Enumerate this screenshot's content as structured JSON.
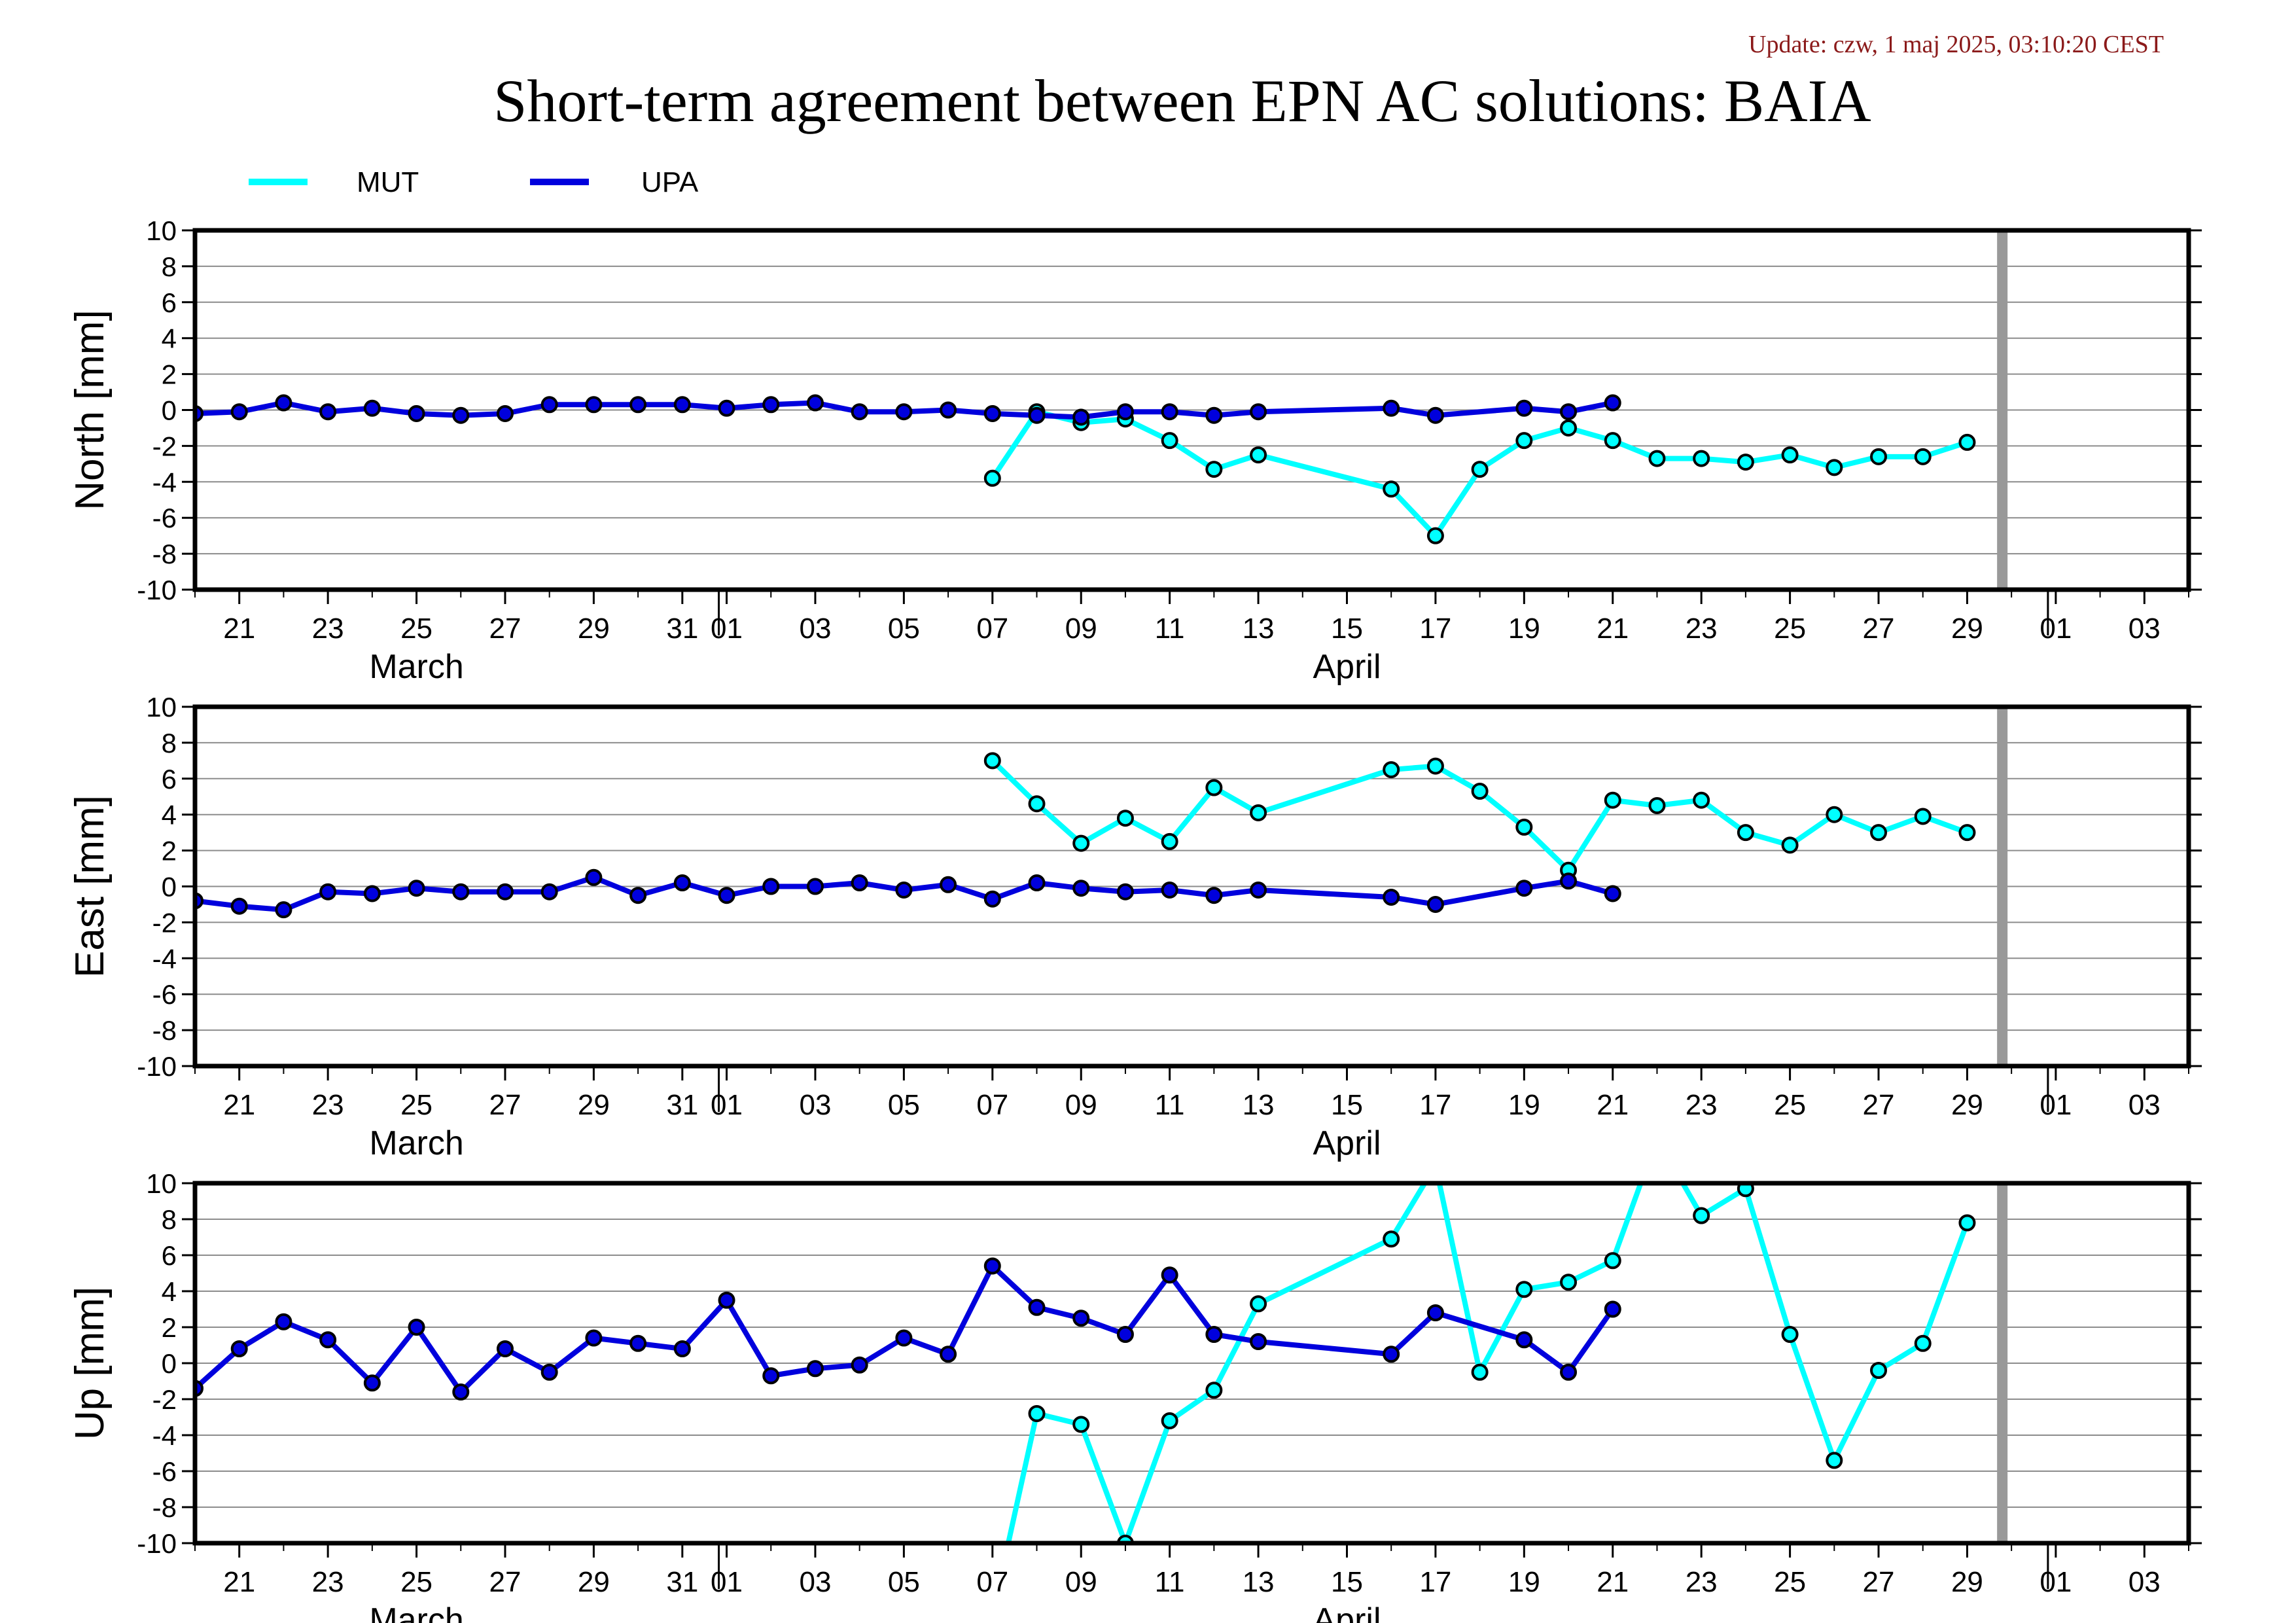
{
  "update_text": "Update: czw, 1 maj 2025, 03:10:20 CEST",
  "colors": {
    "MUT": "#00ffff",
    "UPA": "#0000dd",
    "today_line": "#999999",
    "update_text": "#8b1a1a"
  },
  "chart_data": {
    "type": "line",
    "title": "Short-term agreement between EPN AC solutions: BAIA",
    "legend": {
      "placement": "top-left",
      "entries": [
        "MUT",
        "UPA"
      ]
    },
    "x_axis": {
      "unit": "day",
      "range": [
        "2025-03-20",
        "2025-05-04"
      ],
      "tick_labels": [
        "21",
        "23",
        "25",
        "27",
        "29",
        "31",
        "01",
        "03",
        "05",
        "07",
        "09",
        "11",
        "13",
        "15",
        "17",
        "19",
        "21",
        "23",
        "25",
        "27",
        "29",
        "01",
        "03"
      ],
      "tick_dates": [
        "2025-03-21",
        "2025-03-23",
        "2025-03-25",
        "2025-03-27",
        "2025-03-29",
        "2025-03-31",
        "2025-04-01",
        "2025-04-03",
        "2025-04-05",
        "2025-04-07",
        "2025-04-09",
        "2025-04-11",
        "2025-04-13",
        "2025-04-15",
        "2025-04-17",
        "2025-04-19",
        "2025-04-21",
        "2025-04-23",
        "2025-04-25",
        "2025-04-27",
        "2025-04-29",
        "2025-05-01",
        "2025-05-03"
      ],
      "months": [
        {
          "label": "March",
          "date": "2025-03-25"
        },
        {
          "label": "April",
          "date": "2025-04-15"
        }
      ],
      "month_boundaries": [
        "2025-04-01",
        "2025-05-01"
      ]
    },
    "marker_line_date": "2025-04-30",
    "ylim": [
      -10,
      10
    ],
    "y_ticks": [
      10,
      8,
      6,
      4,
      2,
      0,
      -2,
      -4,
      -6,
      -8,
      -10
    ],
    "grid": true,
    "panels": [
      {
        "ylabel": "North [mm]",
        "series": [
          {
            "name": "MUT",
            "x": [
              "2025-04-07",
              "2025-04-08",
              "2025-04-09",
              "2025-04-10",
              "2025-04-11",
              "2025-04-12",
              "2025-04-13",
              "2025-04-16",
              "2025-04-17",
              "2025-04-18",
              "2025-04-19",
              "2025-04-20",
              "2025-04-21",
              "2025-04-22",
              "2025-04-23",
              "2025-04-24",
              "2025-04-25",
              "2025-04-26",
              "2025-04-27",
              "2025-04-28",
              "2025-04-29"
            ],
            "y": [
              -3.8,
              -0.1,
              -0.7,
              -0.5,
              -1.7,
              -3.3,
              -2.5,
              -4.4,
              -7.0,
              -3.3,
              -1.7,
              -1.0,
              -1.7,
              -2.7,
              -2.7,
              -2.9,
              -2.5,
              -3.2,
              -2.6,
              -2.6,
              -1.8
            ]
          },
          {
            "name": "UPA",
            "x": [
              "2025-03-20",
              "2025-03-21",
              "2025-03-22",
              "2025-03-23",
              "2025-03-24",
              "2025-03-25",
              "2025-03-26",
              "2025-03-27",
              "2025-03-28",
              "2025-03-29",
              "2025-03-30",
              "2025-03-31",
              "2025-04-01",
              "2025-04-02",
              "2025-04-03",
              "2025-04-04",
              "2025-04-05",
              "2025-04-06",
              "2025-04-07",
              "2025-04-08",
              "2025-04-09",
              "2025-04-10",
              "2025-04-11",
              "2025-04-12",
              "2025-04-13",
              "2025-04-16",
              "2025-04-17",
              "2025-04-19",
              "2025-04-20",
              "2025-04-21"
            ],
            "y": [
              -0.2,
              -0.1,
              0.4,
              -0.1,
              0.1,
              -0.2,
              -0.3,
              -0.2,
              0.3,
              0.3,
              0.3,
              0.3,
              0.1,
              0.3,
              0.4,
              -0.1,
              -0.1,
              0.0,
              -0.2,
              -0.3,
              -0.4,
              -0.1,
              -0.1,
              -0.3,
              -0.1,
              0.1,
              -0.3,
              0.1,
              -0.1,
              0.4
            ]
          }
        ]
      },
      {
        "ylabel": "East [mm]",
        "series": [
          {
            "name": "MUT",
            "x": [
              "2025-04-07",
              "2025-04-08",
              "2025-04-09",
              "2025-04-10",
              "2025-04-11",
              "2025-04-12",
              "2025-04-13",
              "2025-04-16",
              "2025-04-17",
              "2025-04-18",
              "2025-04-19",
              "2025-04-20",
              "2025-04-21",
              "2025-04-22",
              "2025-04-23",
              "2025-04-24",
              "2025-04-25",
              "2025-04-26",
              "2025-04-27",
              "2025-04-28",
              "2025-04-29"
            ],
            "y": [
              7.0,
              4.6,
              2.4,
              3.8,
              2.5,
              5.5,
              4.1,
              6.5,
              6.7,
              5.3,
              3.3,
              0.9,
              4.8,
              4.5,
              4.8,
              3.0,
              2.3,
              4.0,
              3.0,
              3.9,
              3.0
            ]
          },
          {
            "name": "UPA",
            "x": [
              "2025-03-20",
              "2025-03-21",
              "2025-03-22",
              "2025-03-23",
              "2025-03-24",
              "2025-03-25",
              "2025-03-26",
              "2025-03-27",
              "2025-03-28",
              "2025-03-29",
              "2025-03-30",
              "2025-03-31",
              "2025-04-01",
              "2025-04-02",
              "2025-04-03",
              "2025-04-04",
              "2025-04-05",
              "2025-04-06",
              "2025-04-07",
              "2025-04-08",
              "2025-04-09",
              "2025-04-10",
              "2025-04-11",
              "2025-04-12",
              "2025-04-13",
              "2025-04-16",
              "2025-04-17",
              "2025-04-19",
              "2025-04-20",
              "2025-04-21"
            ],
            "y": [
              -0.8,
              -1.1,
              -1.3,
              -0.3,
              -0.4,
              -0.1,
              -0.3,
              -0.3,
              -0.3,
              0.5,
              -0.5,
              0.2,
              -0.5,
              0.0,
              0.0,
              0.2,
              -0.2,
              0.1,
              -0.7,
              0.2,
              -0.1,
              -0.3,
              -0.2,
              -0.5,
              -0.2,
              -0.6,
              -1.0,
              -0.1,
              0.3,
              -0.4
            ]
          }
        ]
      },
      {
        "ylabel": "Up [mm]",
        "series": [
          {
            "name": "MUT",
            "x": [
              "2025-04-07",
              "2025-04-08",
              "2025-04-09",
              "2025-04-10",
              "2025-04-11",
              "2025-04-12",
              "2025-04-13",
              "2025-04-16",
              "2025-04-17",
              "2025-04-18",
              "2025-04-19",
              "2025-04-20",
              "2025-04-21",
              "2025-04-22",
              "2025-04-23",
              "2025-04-24",
              "2025-04-25",
              "2025-04-26",
              "2025-04-27",
              "2025-04-28",
              "2025-04-29"
            ],
            "y": [
              -14.0,
              -2.8,
              -3.4,
              -10.0,
              -3.2,
              -1.5,
              3.3,
              6.9,
              11.0,
              -0.5,
              4.1,
              4.5,
              5.7,
              12.5,
              8.2,
              9.7,
              1.6,
              -5.4,
              -0.4,
              1.1,
              7.8
            ]
          },
          {
            "name": "UPA",
            "x": [
              "2025-03-20",
              "2025-03-21",
              "2025-03-22",
              "2025-03-23",
              "2025-03-24",
              "2025-03-25",
              "2025-03-26",
              "2025-03-27",
              "2025-03-28",
              "2025-03-29",
              "2025-03-30",
              "2025-03-31",
              "2025-04-01",
              "2025-04-02",
              "2025-04-03",
              "2025-04-04",
              "2025-04-05",
              "2025-04-06",
              "2025-04-07",
              "2025-04-08",
              "2025-04-09",
              "2025-04-10",
              "2025-04-11",
              "2025-04-12",
              "2025-04-13",
              "2025-04-16",
              "2025-04-17",
              "2025-04-19",
              "2025-04-20",
              "2025-04-21"
            ],
            "y": [
              -1.4,
              0.8,
              2.3,
              1.3,
              -1.1,
              2.0,
              -1.6,
              0.8,
              -0.5,
              1.4,
              1.1,
              0.8,
              3.5,
              -0.7,
              -0.3,
              -0.1,
              1.4,
              0.5,
              5.4,
              3.1,
              2.5,
              1.6,
              4.9,
              1.6,
              1.2,
              0.5,
              2.8,
              1.3,
              -0.5,
              3.0
            ]
          }
        ]
      }
    ]
  }
}
